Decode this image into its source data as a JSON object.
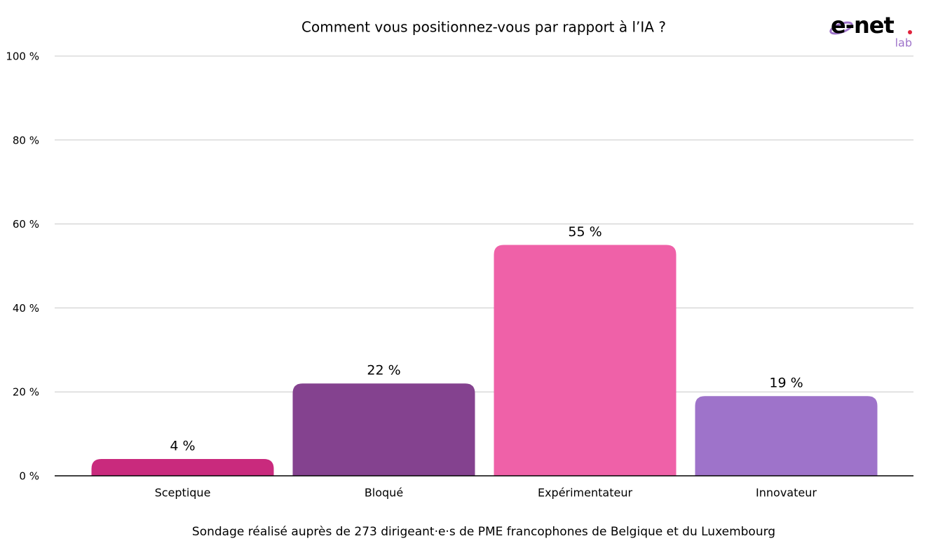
{
  "chart_data": {
    "type": "bar",
    "title": "Comment vous positionnez-vous par rapport à l’IA ?",
    "categories": [
      "Sceptique",
      "Bloqué",
      "Expérimentateur",
      "Innovateur"
    ],
    "values": [
      4,
      22,
      55,
      19
    ],
    "value_labels": [
      "4 %",
      "22 %",
      "55 %",
      "19 %"
    ],
    "colors": [
      "#c92a7d",
      "#84428f",
      "#ef61a8",
      "#9e73ca"
    ],
    "ylim": [
      0,
      100
    ],
    "yticks": [
      {
        "value": 0,
        "label": "0 %"
      },
      {
        "value": 20,
        "label": "20 %"
      },
      {
        "value": 40,
        "label": "40 %"
      },
      {
        "value": 60,
        "label": "60 %"
      },
      {
        "value": 80,
        "label": "80 %"
      },
      {
        "value": 100,
        "label": "100 %"
      }
    ],
    "grid": true,
    "footnote": "Sondage réalisé auprès de 273 dirigeant·e·s de PME francophones de Belgique et du Luxembourg",
    "logo": {
      "name": "e-net",
      "sub": "lab"
    }
  }
}
